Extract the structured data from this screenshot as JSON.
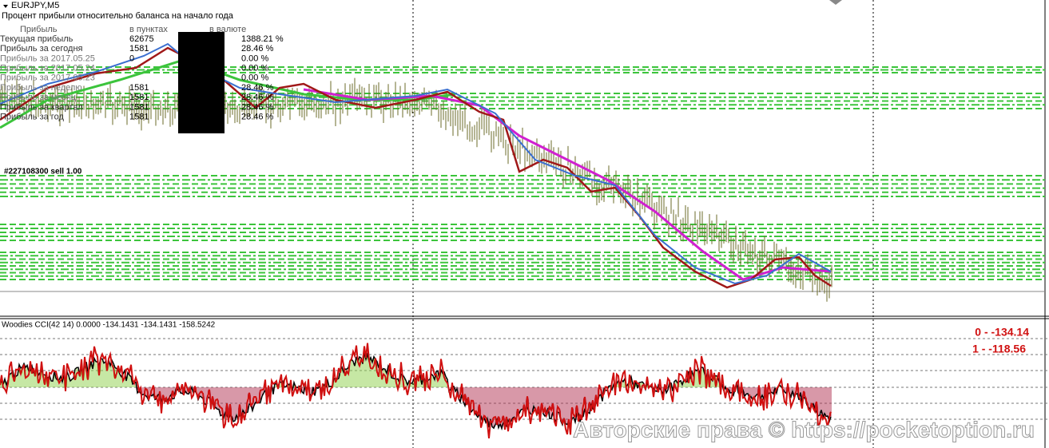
{
  "header": {
    "symbol": "EURJPY,M5",
    "subtitle": "Процент прибыли относительно баланса на начало года"
  },
  "profit_table": {
    "columns": [
      "Прибыль",
      "в пунктах",
      "в валюте"
    ],
    "rows": [
      {
        "label": "Текущая прибыль",
        "points": "62675",
        "currency": "1388.21 %"
      },
      {
        "label": "Прибыль за сегодня",
        "points": "1581",
        "currency": "28.46 %"
      },
      {
        "label": "Прибыль за 2017.05.25",
        "points": "0",
        "currency": "0.00 %"
      },
      {
        "label": "Прибыль за 2017.05.24",
        "currency": "0.00 %"
      },
      {
        "label": "Прибыль за 2017.05.23",
        "currency": "0.00 %"
      },
      {
        "label": "Прибыль за неделю",
        "points": "1581",
        "currency": "28.46 %"
      },
      {
        "label": "Прибыль за месяц",
        "points": "1581",
        "currency": "28.46 %"
      },
      {
        "label": "Прибыль за квартал",
        "points": "1581",
        "currency": "28.46 %"
      },
      {
        "label": "Прибыль за год",
        "points": "1581",
        "currency": "28.46 %"
      }
    ]
  },
  "order_label": "#227108300 sell 1.00",
  "indicator": {
    "title": "Woodies CCI(42 14) 0.0000 -134.1431 -134.1431 -158.5242",
    "readouts": [
      "0 - -134.14",
      "1 - -118.56"
    ]
  },
  "watermark": "Авторские права © https://pocketoption.ru"
}
